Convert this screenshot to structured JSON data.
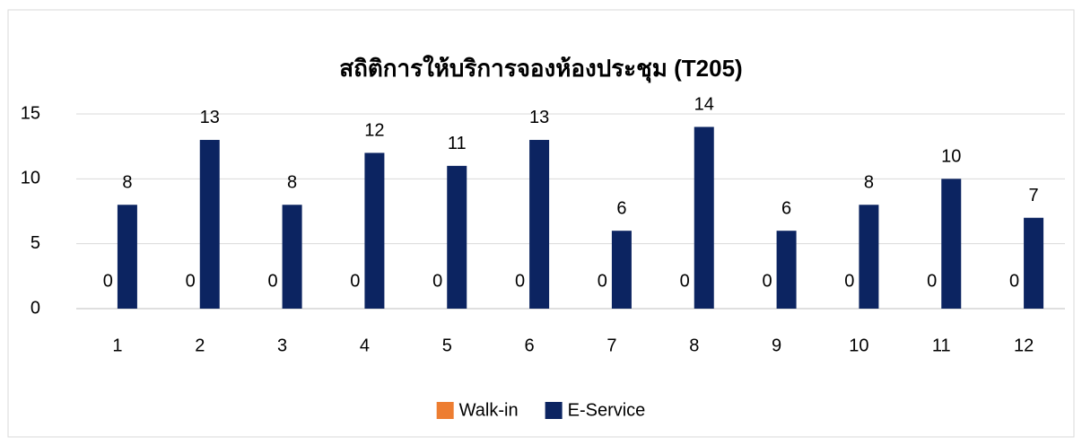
{
  "chart_data": {
    "type": "bar",
    "title": "สถิติการให้บริการจองห้องประชุม (T205)",
    "categories": [
      "1",
      "2",
      "3",
      "4",
      "5",
      "6",
      "7",
      "8",
      "9",
      "10",
      "11",
      "12"
    ],
    "series": [
      {
        "name": "Walk-in",
        "color": "#ed7d31",
        "values": [
          0,
          0,
          0,
          0,
          0,
          0,
          0,
          0,
          0,
          0,
          0,
          0
        ]
      },
      {
        "name": "E-Service",
        "color": "#0c2461",
        "values": [
          8,
          13,
          8,
          12,
          11,
          13,
          6,
          14,
          6,
          8,
          10,
          7
        ]
      }
    ],
    "ylim": [
      0,
      15
    ],
    "yticks": [
      0,
      5,
      10,
      15
    ],
    "grid": true,
    "legend": "bottom"
  }
}
